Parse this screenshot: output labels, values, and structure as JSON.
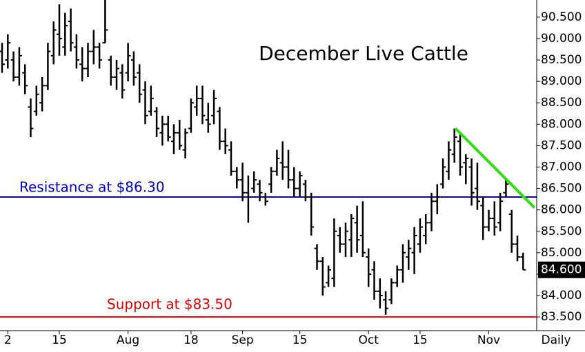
{
  "chart_data": {
    "type": "ohlc",
    "title": "December Live Cattle",
    "color": "#000000",
    "categories": [
      null,
      "2",
      null,
      null,
      null,
      null,
      null,
      null,
      null,
      null,
      "15",
      null,
      null,
      null,
      null,
      null,
      null,
      null,
      null,
      null,
      null,
      null,
      "Aug",
      null,
      null,
      null,
      null,
      null,
      null,
      null,
      null,
      null,
      null,
      "18",
      null,
      null,
      null,
      null,
      null,
      null,
      null,
      null,
      "Sep",
      null,
      null,
      null,
      null,
      null,
      null,
      null,
      null,
      null,
      "15",
      null,
      null,
      null,
      null,
      null,
      null,
      null,
      null,
      null,
      null,
      null,
      "Oct",
      null,
      null,
      null,
      null,
      null,
      null,
      null,
      null,
      "15",
      null,
      null,
      null,
      null,
      null,
      null,
      null,
      null,
      null,
      null,
      null,
      "Nov",
      null,
      null,
      null,
      null,
      null,
      null
    ],
    "open": [
      89.7,
      89.5,
      89.5,
      89.1,
      89.2,
      88.4,
      88.3,
      88.5,
      88.9,
      89.6,
      90.1,
      89.8,
      90.4,
      89.8,
      89.4,
      89.3,
      89.7,
      89.8,
      89.9,
      89.5,
      89.1,
      89.2,
      89.2,
      89.5,
      89.2,
      88.8,
      88.3,
      88.3,
      87.8,
      88.0,
      87.6,
      87.8,
      87.4,
      87.9,
      88.4,
      88.6,
      88.1,
      88.2,
      88.3,
      87.6,
      87.4,
      86.9,
      86.7,
      86.4,
      86.5,
      86.6,
      86.3,
      86.6,
      86.9,
      87.1,
      87.0,
      86.7,
      86.5,
      86.6,
      86.3,
      85.1,
      84.8,
      84.3,
      84.4,
      85.4,
      85.2,
      85.3,
      85.7,
      85.4,
      84.9,
      84.6,
      84.1,
      83.9,
      83.9,
      84.3,
      84.6,
      84.9,
      85.0,
      85.2,
      85.4,
      85.7,
      86.2,
      86.6,
      86.9,
      87.3,
      87.6,
      87.1,
      87.0,
      86.5,
      86.1,
      85.6,
      85.8,
      85.7,
      86.4,
      85.9,
      85.2,
      84.9
    ],
    "high": [
      89.9,
      90.1,
      89.7,
      89.8,
      89.4,
      88.6,
      88.9,
      89.1,
      89.9,
      90.4,
      90.8,
      90.6,
      90.7,
      90.1,
      89.8,
      89.9,
      90.2,
      89.9,
      90.9,
      89.6,
      89.5,
      89.4,
      89.9,
      89.7,
      89.4,
      89.0,
      88.9,
      88.4,
      88.2,
      88.2,
      88.0,
      88.1,
      87.9,
      88.6,
      88.9,
      88.9,
      88.5,
      88.8,
      88.4,
      87.9,
      87.6,
      87.0,
      87.1,
      86.8,
      86.9,
      86.7,
      86.4,
      87.0,
      87.4,
      87.6,
      87.4,
      87.0,
      86.9,
      86.7,
      86.4,
      85.2,
      84.9,
      84.7,
      85.8,
      85.6,
      85.7,
      85.9,
      86.1,
      86.2,
      85.1,
      84.8,
      84.4,
      84.1,
      84.4,
      84.7,
      85.2,
      85.3,
      85.6,
      85.8,
      85.9,
      86.4,
      86.6,
      87.2,
      87.6,
      87.9,
      87.8,
      87.3,
      87.2,
      87.1,
      86.3,
      86.0,
      86.2,
      86.4,
      86.7,
      86.0,
      85.4,
      85.0
    ],
    "low": [
      89.2,
      89.3,
      89.0,
      88.9,
      88.7,
      87.7,
      88.2,
      88.3,
      88.8,
      89.4,
      89.6,
      89.6,
      89.7,
      89.3,
      89.0,
      89.1,
      89.4,
      89.3,
      89.9,
      88.9,
      88.8,
      88.6,
      89.0,
      88.9,
      88.5,
      88.0,
      88.2,
      87.7,
      87.5,
      87.6,
      87.3,
      87.4,
      87.2,
      87.8,
      88.2,
      88.0,
      87.8,
      88.0,
      87.4,
      87.3,
      86.8,
      86.5,
      86.2,
      85.7,
      86.4,
      86.2,
      86.1,
      86.4,
      86.8,
      86.7,
      86.5,
      86.3,
      86.3,
      86.2,
      85.4,
      84.6,
      84.0,
      84.2,
      84.2,
      85.0,
      84.9,
      84.9,
      85.0,
      84.9,
      84.2,
      83.9,
      83.7,
      83.55,
      83.8,
      84.2,
      84.3,
      84.6,
      84.5,
      85.0,
      85.2,
      85.5,
      85.9,
      86.5,
      86.7,
      87.1,
      86.8,
      86.6,
      86.1,
      86.0,
      85.3,
      85.5,
      85.4,
      85.5,
      86.3,
      85.0,
      84.8,
      84.6
    ],
    "close": [
      89.4,
      89.9,
      89.1,
      89.6,
      88.9,
      87.9,
      88.7,
      88.9,
      89.7,
      90.2,
      90.0,
      90.3,
      89.9,
      89.5,
      89.3,
      89.7,
      89.8,
      89.5,
      90.2,
      89.1,
      89.3,
      88.8,
      89.6,
      89.1,
      88.7,
      88.2,
      88.6,
      87.9,
      88.0,
      87.7,
      87.8,
      87.5,
      87.8,
      88.5,
      88.6,
      88.2,
      88.0,
      88.6,
      87.6,
      87.5,
      86.9,
      86.7,
      86.4,
      86.3,
      86.7,
      86.4,
      86.2,
      86.9,
      87.2,
      87.0,
      86.7,
      86.5,
      86.8,
      86.3,
      85.6,
      84.8,
      84.2,
      84.6,
      85.5,
      85.2,
      85.5,
      85.8,
      85.3,
      85.0,
      84.5,
      84.1,
      84.0,
      83.7,
      84.3,
      84.6,
      85.0,
      85.1,
      85.4,
      85.6,
      85.7,
      86.2,
      86.3,
      87.0,
      87.4,
      87.7,
      87.0,
      87.2,
      86.4,
      86.2,
      85.6,
      85.8,
      85.6,
      86.2,
      86.6,
      85.2,
      84.9,
      84.6
    ],
    "last_close": {
      "value": 84.6,
      "label": "84.600"
    },
    "x_axis_label": "Daily",
    "ylim": [
      83.18,
      90.9
    ],
    "yticks": [
      {
        "value": 83.5,
        "label": "83.500"
      },
      {
        "value": 84,
        "label": "84.000"
      },
      {
        "value": 84.5,
        "label": "84.500"
      },
      {
        "value": 85,
        "label": "85.000"
      },
      {
        "value": 85.5,
        "label": "85.500"
      },
      {
        "value": 86,
        "label": "86.000"
      },
      {
        "value": 86.5,
        "label": "86.500"
      },
      {
        "value": 87,
        "label": "87.000"
      },
      {
        "value": 87.5,
        "label": "87.500"
      },
      {
        "value": 88,
        "label": "88.000"
      },
      {
        "value": 88.5,
        "label": "88.500"
      },
      {
        "value": 89,
        "label": "89.000"
      },
      {
        "value": 89.5,
        "label": "89.500"
      },
      {
        "value": 90,
        "label": "90.000"
      },
      {
        "value": 90.5,
        "label": "90.500"
      }
    ],
    "levels": [
      {
        "name": "Resistance at $86.30",
        "value": 86.3,
        "color": "#0000cc"
      },
      {
        "name": "Support at $83.50",
        "value": 83.5,
        "color": "#e00000"
      }
    ],
    "trendline": {
      "color": "#33dd11",
      "x": [
        79.2,
        93
      ],
      "values": [
        87.9,
        86.05
      ]
    }
  }
}
